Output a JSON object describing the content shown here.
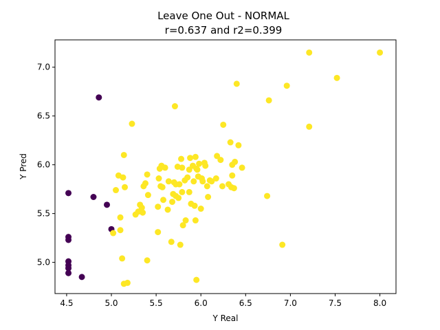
{
  "chart_data": {
    "type": "scatter",
    "title": "Leave One Out - NORMAL",
    "subtitle": "r=0.637 and r2=0.399",
    "xlabel": "Y Real",
    "ylabel": "Y Pred",
    "xlim": [
      4.37,
      8.18
    ],
    "ylim": [
      4.68,
      7.28
    ],
    "xticks": [
      "4.5",
      "5.0",
      "5.5",
      "6.0",
      "6.5",
      "7.0",
      "7.5",
      "8.0"
    ],
    "yticks": [
      "5.0",
      "5.5",
      "6.0",
      "6.5",
      "7.0"
    ],
    "grid": false,
    "colors": {
      "class_0": "#440154",
      "class_1": "#fde725"
    },
    "series": [
      {
        "values": [
          [
            4.52,
            5.71
          ],
          [
            4.52,
            5.26
          ],
          [
            4.52,
            5.23
          ],
          [
            4.52,
            5.01
          ],
          [
            4.52,
            4.97
          ],
          [
            4.52,
            4.94
          ],
          [
            4.52,
            4.89
          ],
          [
            4.67,
            4.85
          ],
          [
            4.8,
            5.67
          ],
          [
            4.86,
            6.69
          ],
          [
            4.95,
            5.59
          ],
          [
            5.0,
            5.34
          ]
        ]
      },
      {
        "values": [
          [
            5.02,
            5.3
          ],
          [
            5.05,
            5.74
          ],
          [
            5.08,
            5.89
          ],
          [
            5.1,
            5.46
          ],
          [
            5.1,
            5.33
          ],
          [
            5.12,
            5.04
          ],
          [
            5.13,
            5.87
          ],
          [
            5.14,
            4.78
          ],
          [
            5.14,
            6.1
          ],
          [
            5.15,
            5.77
          ],
          [
            5.18,
            4.79
          ],
          [
            5.23,
            6.42
          ],
          [
            5.27,
            5.49
          ],
          [
            5.3,
            5.52
          ],
          [
            5.32,
            5.59
          ],
          [
            5.34,
            5.56
          ],
          [
            5.35,
            5.51
          ],
          [
            5.36,
            5.78
          ],
          [
            5.38,
            5.81
          ],
          [
            5.4,
            5.02
          ],
          [
            5.4,
            5.9
          ],
          [
            5.41,
            5.69
          ],
          [
            5.52,
            5.31
          ],
          [
            5.52,
            5.57
          ],
          [
            5.53,
            5.86
          ],
          [
            5.54,
            5.96
          ],
          [
            5.55,
            5.78
          ],
          [
            5.56,
            5.99
          ],
          [
            5.57,
            5.77
          ],
          [
            5.58,
            5.64
          ],
          [
            5.6,
            5.97
          ],
          [
            5.63,
            5.54
          ],
          [
            5.64,
            5.83
          ],
          [
            5.67,
            5.21
          ],
          [
            5.68,
            5.62
          ],
          [
            5.69,
            5.7
          ],
          [
            5.7,
            5.82
          ],
          [
            5.71,
            6.6
          ],
          [
            5.72,
            5.8
          ],
          [
            5.72,
            5.68
          ],
          [
            5.74,
            5.98
          ],
          [
            5.75,
            5.66
          ],
          [
            5.76,
            5.8
          ],
          [
            5.77,
            5.18
          ],
          [
            5.78,
            6.06
          ],
          [
            5.79,
            5.97
          ],
          [
            5.79,
            5.72
          ],
          [
            5.8,
            5.38
          ],
          [
            5.82,
            5.84
          ],
          [
            5.83,
            5.43
          ],
          [
            5.85,
            5.87
          ],
          [
            5.87,
            5.95
          ],
          [
            5.87,
            5.72
          ],
          [
            5.88,
            6.07
          ],
          [
            5.89,
            5.6
          ],
          [
            5.91,
            5.99
          ],
          [
            5.92,
            5.83
          ],
          [
            5.93,
            5.58
          ],
          [
            5.94,
            5.43
          ],
          [
            5.94,
            6.08
          ],
          [
            5.95,
            5.96
          ],
          [
            5.95,
            4.82
          ],
          [
            5.96,
            5.95
          ],
          [
            5.97,
            5.88
          ],
          [
            5.98,
            6.01
          ],
          [
            6.0,
            5.55
          ],
          [
            6.01,
            5.86
          ],
          [
            6.02,
            5.83
          ],
          [
            6.04,
            6.02
          ],
          [
            6.05,
            5.99
          ],
          [
            6.07,
            5.78
          ],
          [
            6.08,
            5.67
          ],
          [
            6.1,
            5.84
          ],
          [
            6.12,
            5.83
          ],
          [
            6.17,
            5.86
          ],
          [
            6.18,
            6.09
          ],
          [
            6.22,
            6.05
          ],
          [
            6.24,
            5.78
          ],
          [
            6.25,
            6.41
          ],
          [
            6.31,
            5.8
          ],
          [
            6.33,
            6.23
          ],
          [
            6.34,
            5.77
          ],
          [
            6.35,
            5.89
          ],
          [
            6.35,
            6.0
          ],
          [
            6.37,
            5.76
          ],
          [
            6.38,
            6.03
          ],
          [
            6.4,
            6.83
          ],
          [
            6.42,
            6.2
          ],
          [
            6.46,
            5.97
          ],
          [
            6.74,
            5.68
          ],
          [
            6.76,
            6.66
          ],
          [
            6.91,
            5.18
          ],
          [
            6.96,
            6.81
          ],
          [
            7.21,
            7.15
          ],
          [
            7.21,
            6.39
          ],
          [
            7.52,
            6.89
          ],
          [
            8.0,
            7.15
          ]
        ]
      }
    ]
  }
}
